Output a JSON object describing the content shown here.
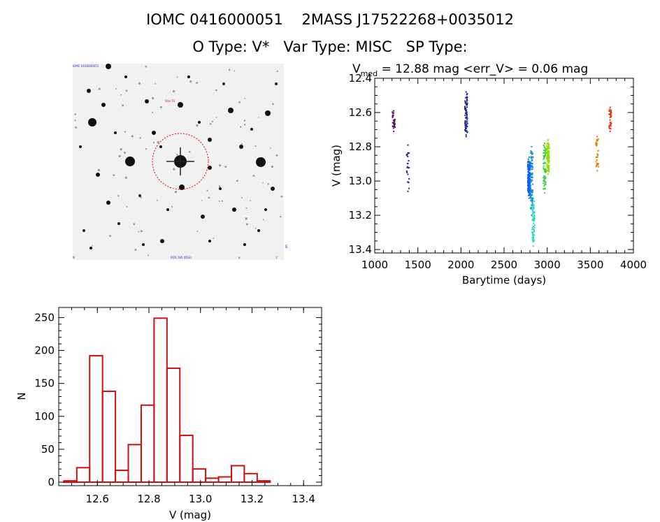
{
  "header": {
    "line1": "IOMC 0416000051    2MASS J17522268+0035012",
    "line2": "O Type: V*   Var Type: MISC   SP Type:"
  },
  "finder": {
    "caption_left": "IOMC 0416000051",
    "marker_label": "Star 51",
    "corner_labels": [
      "N",
      "E",
      "ROS 180 (DSS)",
      "1'"
    ]
  },
  "chart_data": [
    {
      "type": "scatter",
      "title_main": "V",
      "title_sub": "med",
      "title_rest": " = 12.88 mag <err_V> = 0.06 mag",
      "xlabel": "Barytime (days)",
      "ylabel": "V (mag)",
      "xlim": [
        1000,
        4000
      ],
      "ylim": [
        12.4,
        13.42
      ],
      "y_reversed": true,
      "xticks": [
        "1000",
        "1500",
        "2000",
        "2500",
        "3000",
        "3500",
        "4000"
      ],
      "yticks": [
        "12.4",
        "12.6",
        "12.8",
        "13.0",
        "13.2",
        "13.4"
      ],
      "series": [
        {
          "color": "#5a1070",
          "x": 1220,
          "ymin": 12.59,
          "ymax": 12.71,
          "n": 36
        },
        {
          "color": "#3a1a8a",
          "x": 1385,
          "ymin": 12.79,
          "ymax": 13.06,
          "n": 22
        },
        {
          "color": "#2020a0",
          "x": 2060,
          "ymin": 12.48,
          "ymax": 12.74,
          "n": 70
        },
        {
          "color": "#1060e8",
          "x": 2790,
          "ymin": 12.86,
          "ymax": 13.1,
          "n": 170
        },
        {
          "color": "#1090d0",
          "x": 2820,
          "ymin": 12.8,
          "ymax": 13.2,
          "n": 80
        },
        {
          "color": "#30d8c0",
          "x": 2840,
          "ymin": 13.1,
          "ymax": 13.38,
          "n": 70
        },
        {
          "color": "#40d040",
          "x": 2970,
          "ymin": 12.78,
          "ymax": 13.07,
          "n": 70
        },
        {
          "color": "#90e000",
          "x": 3010,
          "ymin": 12.76,
          "ymax": 12.96,
          "n": 100
        },
        {
          "color": "#e08000",
          "x": 3580,
          "ymin": 12.74,
          "ymax": 12.94,
          "n": 30
        },
        {
          "color": "#e03010",
          "x": 3730,
          "ymin": 12.57,
          "ymax": 12.71,
          "n": 30
        }
      ]
    },
    {
      "type": "bar",
      "xlabel": "V (mag)",
      "ylabel": "N",
      "xlim": [
        12.45,
        13.47
      ],
      "ylim": [
        0,
        260
      ],
      "bin_width": 0.05,
      "bin_starts": [
        12.47,
        12.52,
        12.57,
        12.62,
        12.67,
        12.72,
        12.77,
        12.82,
        12.87,
        12.92,
        12.97,
        13.02,
        13.07,
        13.12,
        13.17,
        13.22,
        13.27,
        13.32,
        13.37
      ],
      "values": [
        2,
        22,
        192,
        138,
        18,
        57,
        117,
        249,
        173,
        71,
        20,
        6,
        8,
        25,
        13,
        2,
        0,
        0,
        0
      ],
      "xticks": [
        "12.6",
        "12.8",
        "13.0",
        "13.2",
        "13.4"
      ],
      "yticks": [
        "0",
        "50",
        "100",
        "150",
        "200",
        "250"
      ],
      "color": "#d01010"
    }
  ]
}
